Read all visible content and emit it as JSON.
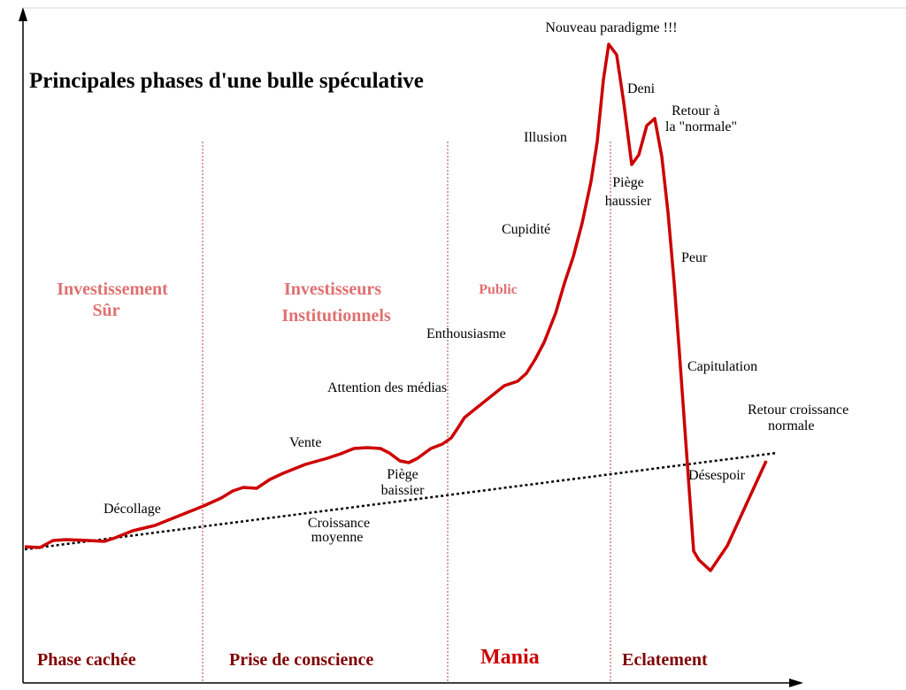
{
  "colors": {
    "bubble_curve": "#cc0000",
    "axis": "#000000",
    "divider": "#b04040",
    "actor_text": "#e07070",
    "phase_text": "#800000",
    "mania_text": "#cc0000",
    "trend_line": "#000000"
  },
  "title": "Principales phases d'une bulle spéculative",
  "phases": [
    {
      "label": "Phase cachée"
    },
    {
      "label": "Prise de conscience"
    },
    {
      "label": "Mania"
    },
    {
      "label": "Eclatement"
    }
  ],
  "actors": {
    "investissement": {
      "line1": "Investissement",
      "line2": "Sûr"
    },
    "institutionnels": {
      "line1": "Investisseurs",
      "line2": "Institutionnels"
    },
    "public": {
      "line1": "Public"
    }
  },
  "annotations": {
    "decollage": "Décollage",
    "vente": "Vente",
    "piege_baissier": {
      "line1": "Piège",
      "line2": "baissier"
    },
    "attention": "Attention des médias",
    "enthousiasme": "Enthousiasme",
    "cupidite": "Cupidité",
    "illusion": "Illusion",
    "nouveau_paradigme": "Nouveau paradigme !!!",
    "deni": "Deni",
    "retour_normale": {
      "line1": "Retour  à",
      "line2": "la \"normale\""
    },
    "piege_haussier": {
      "line1": "Piège",
      "line2": "haussier"
    },
    "peur": "Peur",
    "capitulation": "Capitulation",
    "desespoir": "Désespoir",
    "retour_croissance": {
      "line1": "Retour croissance",
      "line2": "normale"
    },
    "croissance_moyenne": {
      "line1": "Croissance",
      "line2": "moyenne"
    }
  }
}
